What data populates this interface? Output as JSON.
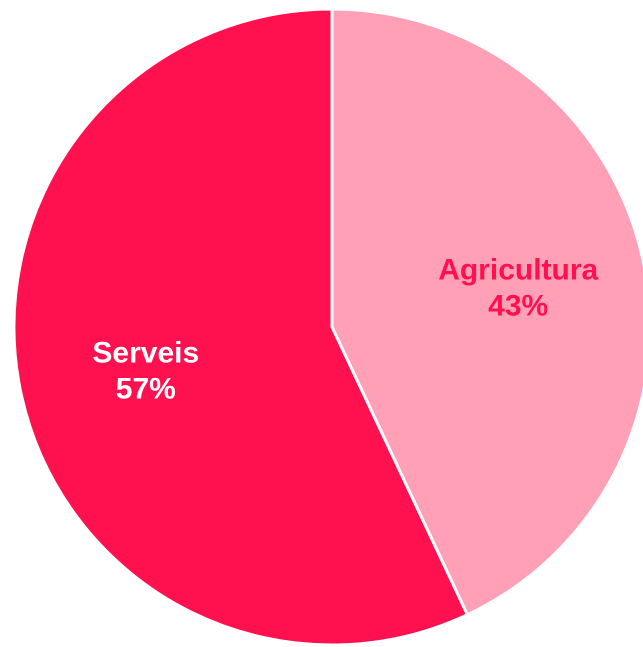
{
  "chart_data": {
    "type": "pie",
    "start_angle_deg": 0,
    "direction": "clockwise",
    "slices": [
      {
        "name": "Agricultura",
        "value": 43,
        "percent_label": "43%",
        "color": "#FFA0B6",
        "label_color": "#FF114F"
      },
      {
        "name": "Serveis",
        "value": 57,
        "percent_label": "57%",
        "color": "#FF114F",
        "label_color": "#FFFFFF"
      }
    ]
  }
}
